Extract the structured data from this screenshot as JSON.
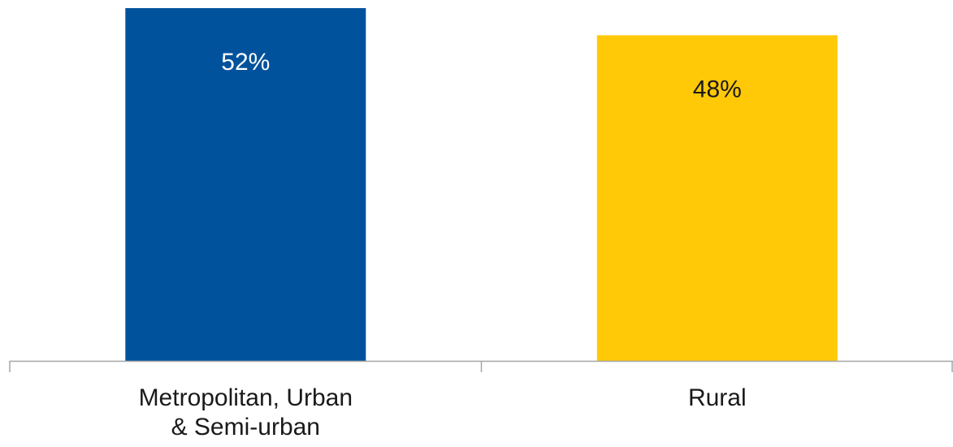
{
  "chart_data": {
    "type": "bar",
    "categories": [
      [
        "Metropolitan, Urban",
        "& Semi-urban"
      ],
      [
        "Rural"
      ]
    ],
    "values": [
      52,
      48
    ],
    "value_labels": [
      "52%",
      "48%"
    ],
    "colors": [
      "#00529C",
      "#FFC907"
    ],
    "label_colors": [
      "#ffffff",
      "#1a1a1a"
    ],
    "axis_color": "#A6A6A6",
    "title": "",
    "xlabel": "",
    "ylabel": "",
    "ylim": [
      0,
      52
    ],
    "grid": false,
    "legend": "none"
  }
}
